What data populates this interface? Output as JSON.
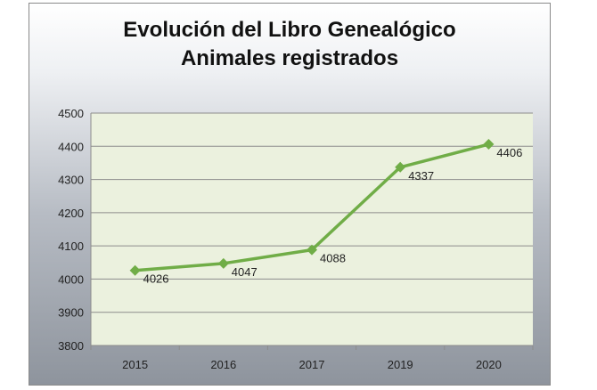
{
  "chart_data": {
    "type": "line",
    "title": [
      "Evolución del Libro Genealógico",
      "Animales registrados"
    ],
    "categories": [
      "2015",
      "2016",
      "2017",
      "2019",
      "2020"
    ],
    "series": [
      {
        "values": [
          4026,
          4047,
          4088,
          4337,
          4406
        ],
        "color": "#70ad47"
      }
    ],
    "ylim": [
      3800,
      4500
    ],
    "yticks": [
      "3800",
      "3900",
      "4000",
      "4100",
      "4200",
      "4300",
      "4400",
      "4500"
    ],
    "data_labels": [
      "4026",
      "4047",
      "4088",
      "4337",
      "4406"
    ],
    "grid": true,
    "legend": "none",
    "plot_background": "#ebf1de"
  }
}
